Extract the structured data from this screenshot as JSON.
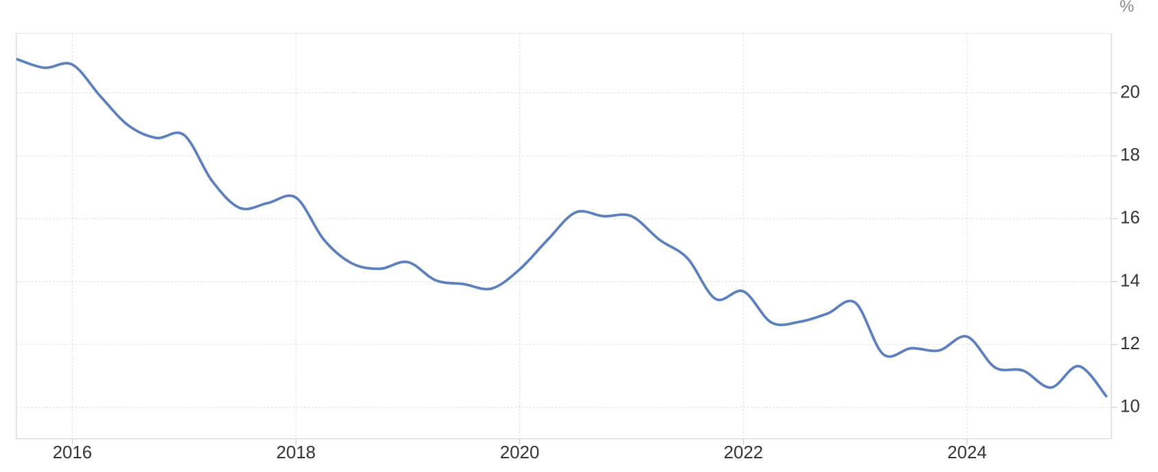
{
  "chart_data": {
    "type": "line",
    "unit": "%",
    "x": [
      2015.5,
      2015.75,
      2016.0,
      2016.25,
      2016.5,
      2016.75,
      2017.0,
      2017.25,
      2017.5,
      2017.75,
      2018.0,
      2018.25,
      2018.5,
      2018.75,
      2019.0,
      2019.25,
      2019.5,
      2019.75,
      2020.0,
      2020.25,
      2020.5,
      2020.75,
      2021.0,
      2021.25,
      2021.5,
      2021.75,
      2022.0,
      2022.25,
      2022.5,
      2022.75,
      2023.0,
      2023.25,
      2023.5,
      2023.75,
      2024.0,
      2024.25,
      2024.5,
      2024.75,
      2025.0,
      2025.25
    ],
    "values": [
      21.08,
      20.8,
      20.9,
      19.9,
      18.97,
      18.57,
      18.66,
      17.2,
      16.34,
      16.5,
      16.67,
      15.33,
      14.58,
      14.41,
      14.62,
      14.04,
      13.92,
      13.78,
      14.39,
      15.33,
      16.2,
      16.08,
      16.08,
      15.33,
      14.74,
      13.45,
      13.69,
      12.7,
      12.72,
      12.98,
      13.33,
      11.69,
      11.88,
      11.81,
      12.25,
      11.27,
      11.17,
      10.63,
      11.31,
      10.33
    ],
    "color": "#5b7fbf",
    "xlim": [
      2015.5,
      2025.29
    ],
    "xticks": [
      2016,
      2018,
      2020,
      2022,
      2024
    ],
    "ylim": [
      9,
      21.9
    ],
    "yticks": [
      10,
      12,
      14,
      16,
      18,
      20
    ],
    "grid": true
  }
}
